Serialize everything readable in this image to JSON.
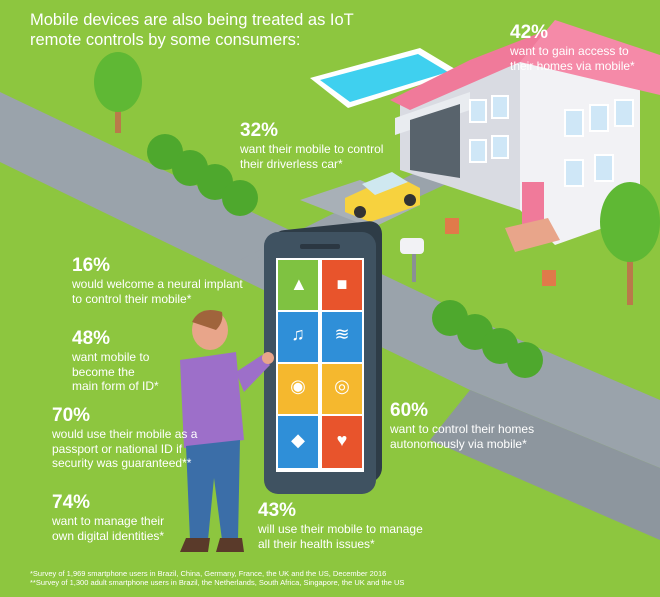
{
  "headline": "Mobile devices are also being treated as IoT remote controls by some consumers:",
  "stats": [
    {
      "id": "home-access",
      "percent": "42%",
      "text": "want to gain access to\ntheir homes via mobile*"
    },
    {
      "id": "driverless-car",
      "percent": "32%",
      "text": "want their mobile to control\ntheir driverless car*"
    },
    {
      "id": "neural-implant",
      "percent": "16%",
      "text": "would welcome a neural implant\nto control their mobile*"
    },
    {
      "id": "main-id",
      "percent": "48%",
      "text": "want mobile to\nbecome the\nmain form of ID*"
    },
    {
      "id": "passport",
      "percent": "70%",
      "text": "would use their mobile as a\npassport or national ID if\nsecurity was guaranteed**"
    },
    {
      "id": "control-homes",
      "percent": "60%",
      "text": "want to control their homes\nautonomously via mobile*"
    },
    {
      "id": "digital-identities",
      "percent": "74%",
      "text": "want to manage their\nown digital identities*"
    },
    {
      "id": "health",
      "percent": "43%",
      "text": "will use their mobile to manage\nall their health issues*"
    }
  ],
  "footnotes": [
    "*Survey of 1,969 smartphone users in Brazil, China, Germany, France, the UK and the US, December 2016",
    "**Survey of 1,300 adult smartphone users in Brazil, the Netherlands, South Africa, Singapore, the UK and the US"
  ],
  "app_icons": [
    "thermometer-icon",
    "padlock-icon",
    "music-icon",
    "wifi-icon",
    "fingerprint-icon",
    "lightbulb-icon",
    "water-drop-icon",
    "heart-icon"
  ],
  "colors": {
    "background": "#8dc63f",
    "road": "#9aa3ab",
    "roof": "#f07a9a",
    "pool": "#3fd0ef",
    "car": "#f7d23e",
    "phone_body": "#3f5261",
    "tile_green": "#7fc241",
    "tile_red": "#e8542c",
    "tile_blue": "#2f8fd8",
    "tile_yellow": "#f5b82e",
    "shirt": "#9d6fc9",
    "jeans": "#3b6ea8"
  }
}
